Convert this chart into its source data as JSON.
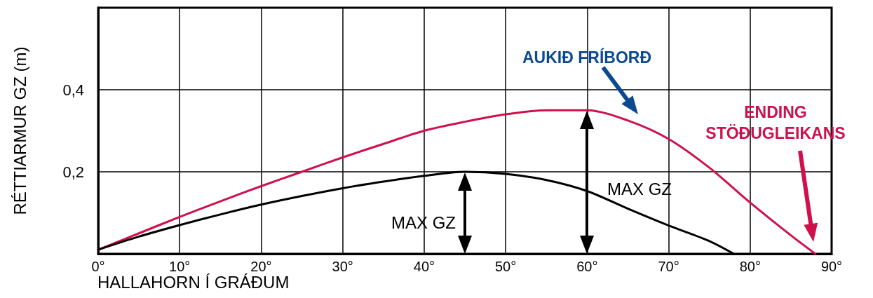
{
  "chart_data": {
    "type": "line",
    "xlabel": "HALLAHORN Í GRÁÐUM",
    "ylabel": "RÉTTIARMUR GZ (m)",
    "xlim": [
      0,
      90
    ],
    "ylim": [
      0,
      0.6
    ],
    "xticks": [
      {
        "value": 0,
        "label": "0°"
      },
      {
        "value": 10,
        "label": "10°"
      },
      {
        "value": 20,
        "label": "20°"
      },
      {
        "value": 30,
        "label": "30°"
      },
      {
        "value": 40,
        "label": "40°"
      },
      {
        "value": 50,
        "label": "50°"
      },
      {
        "value": 60,
        "label": "60°"
      },
      {
        "value": 70,
        "label": "70°"
      },
      {
        "value": 80,
        "label": "80°"
      },
      {
        "value": 90,
        "label": "90°"
      }
    ],
    "yticks": [
      {
        "value": 0.2,
        "label": "0,2"
      },
      {
        "value": 0.4,
        "label": "0,4"
      }
    ],
    "grid": true,
    "marker": "none",
    "line_style": "solid",
    "series": [
      {
        "color": "#d0104c",
        "x": [
          0,
          5,
          10,
          15,
          20,
          25,
          30,
          35,
          40,
          45,
          50,
          55,
          58,
          60,
          65,
          70,
          75,
          80,
          85,
          88
        ],
        "values": [
          0.01,
          0.05,
          0.09,
          0.128,
          0.165,
          0.2,
          0.235,
          0.268,
          0.3,
          0.322,
          0.34,
          0.35,
          0.35,
          0.35,
          0.325,
          0.28,
          0.21,
          0.125,
          0.045,
          0
        ]
      },
      {
        "color": "#000000",
        "x": [
          0,
          5,
          10,
          15,
          20,
          25,
          30,
          35,
          40,
          45,
          50,
          55,
          60,
          65,
          70,
          75,
          78
        ],
        "values": [
          0.01,
          0.042,
          0.07,
          0.096,
          0.12,
          0.141,
          0.16,
          0.176,
          0.19,
          0.2,
          0.195,
          0.18,
          0.153,
          0.11,
          0.069,
          0.031,
          0
        ]
      }
    ],
    "annotations": [
      "AUKIÐ FRÍBORÐ",
      "ENDING\nSTÖÐUGLEIKANS",
      "MAX GZ",
      "MAX GZ"
    ]
  }
}
